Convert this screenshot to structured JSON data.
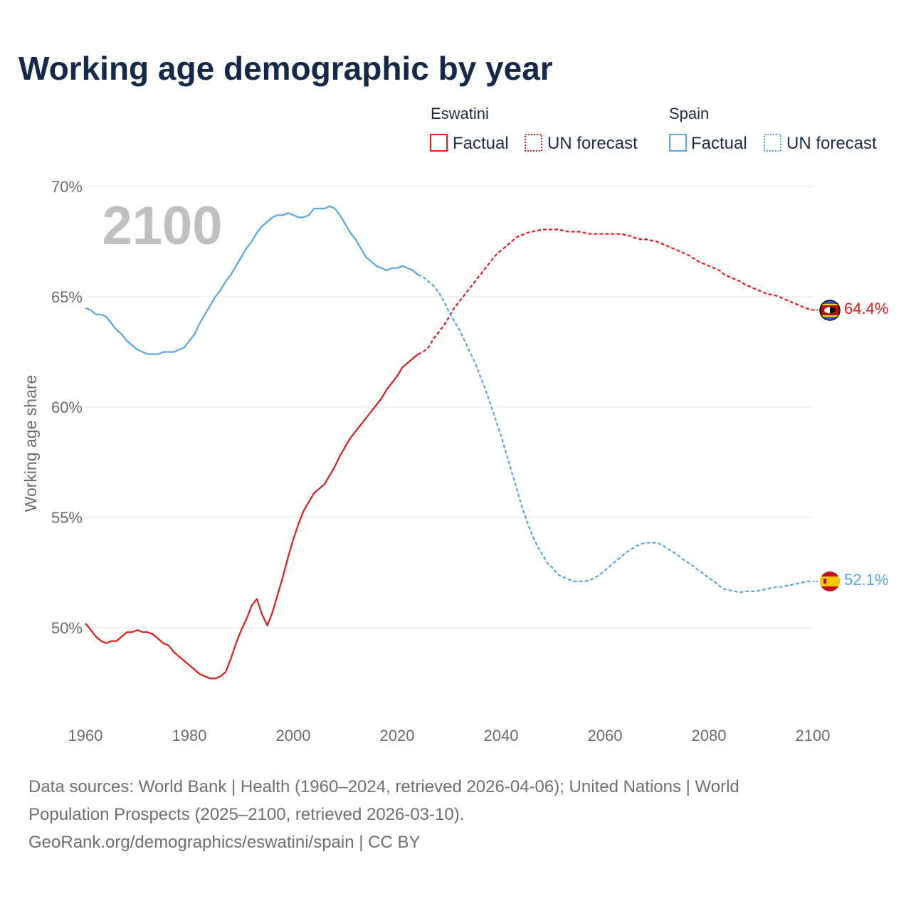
{
  "title": "Working age demographic by year",
  "year_watermark": "2100",
  "legend": {
    "groups": [
      {
        "name": "Eswatini",
        "color": "#e5191e",
        "factual_label": "Factual",
        "forecast_label": "UN forecast"
      },
      {
        "name": "Spain",
        "color": "#58a4e6",
        "factual_label": "Factual",
        "forecast_label": "UN forecast"
      }
    ]
  },
  "source": {
    "line1": "Data sources: World Bank | Health (1960–2024, retrieved 2026-04-06); United Nations | World",
    "line2": "Population Prospects (2025–2100, retrieved 2026-03-10).",
    "line3": "GeoRank.org/demographics/eswatini/spain | CC BY"
  },
  "chart_data": {
    "type": "line",
    "title": "Working age demographic by year",
    "xlabel": "",
    "ylabel": "Working age share",
    "xlim": [
      1960,
      2100
    ],
    "ylim": [
      46.0,
      70.0
    ],
    "x_ticks": [
      1960,
      1980,
      2000,
      2020,
      2040,
      2060,
      2080,
      2100
    ],
    "y_ticks": [
      50,
      55,
      60,
      65,
      70
    ],
    "y_tick_labels": [
      "50%",
      "55%",
      "60%",
      "65%",
      "70%"
    ],
    "series": [
      {
        "name": "Eswatini",
        "color": "#e5191e",
        "end_label": "64.4%",
        "factual": [
          [
            1960,
            50.2
          ],
          [
            1961,
            49.9
          ],
          [
            1962,
            49.6
          ],
          [
            1963,
            49.4
          ],
          [
            1964,
            49.3
          ],
          [
            1965,
            49.4
          ],
          [
            1966,
            49.4
          ],
          [
            1967,
            49.6
          ],
          [
            1968,
            49.8
          ],
          [
            1969,
            49.8
          ],
          [
            1970,
            49.9
          ],
          [
            1971,
            49.8
          ],
          [
            1972,
            49.8
          ],
          [
            1973,
            49.7
          ],
          [
            1974,
            49.5
          ],
          [
            1975,
            49.3
          ],
          [
            1976,
            49.2
          ],
          [
            1977,
            48.9
          ],
          [
            1978,
            48.7
          ],
          [
            1979,
            48.5
          ],
          [
            1980,
            48.3
          ],
          [
            1981,
            48.1
          ],
          [
            1982,
            47.9
          ],
          [
            1983,
            47.8
          ],
          [
            1984,
            47.7
          ],
          [
            1985,
            47.7
          ],
          [
            1986,
            47.8
          ],
          [
            1987,
            48.0
          ],
          [
            1988,
            48.6
          ],
          [
            1989,
            49.3
          ],
          [
            1990,
            49.9
          ],
          [
            1991,
            50.4
          ],
          [
            1992,
            51.0
          ],
          [
            1993,
            51.3
          ],
          [
            1994,
            50.6
          ],
          [
            1995,
            50.1
          ],
          [
            1996,
            50.7
          ],
          [
            1997,
            51.5
          ],
          [
            1998,
            52.3
          ],
          [
            1999,
            53.2
          ],
          [
            2000,
            54.0
          ],
          [
            2001,
            54.7
          ],
          [
            2002,
            55.3
          ],
          [
            2003,
            55.7
          ],
          [
            2004,
            56.1
          ],
          [
            2005,
            56.3
          ],
          [
            2006,
            56.5
          ],
          [
            2007,
            56.9
          ],
          [
            2008,
            57.3
          ],
          [
            2009,
            57.8
          ],
          [
            2010,
            58.2
          ],
          [
            2011,
            58.6
          ],
          [
            2012,
            58.9
          ],
          [
            2013,
            59.2
          ],
          [
            2014,
            59.5
          ],
          [
            2015,
            59.8
          ],
          [
            2016,
            60.1
          ],
          [
            2017,
            60.4
          ],
          [
            2018,
            60.8
          ],
          [
            2019,
            61.1
          ],
          [
            2020,
            61.4
          ],
          [
            2021,
            61.8
          ],
          [
            2022,
            62.0
          ],
          [
            2023,
            62.2
          ],
          [
            2024,
            62.4
          ]
        ],
        "forecast": [
          [
            2024,
            62.4
          ],
          [
            2025,
            62.5
          ],
          [
            2026,
            62.7
          ],
          [
            2027,
            63.1
          ],
          [
            2028,
            63.4
          ],
          [
            2029,
            63.7
          ],
          [
            2030,
            64.1
          ],
          [
            2031,
            64.5
          ],
          [
            2032,
            64.8
          ],
          [
            2033,
            65.1
          ],
          [
            2034,
            65.4
          ],
          [
            2035,
            65.7
          ],
          [
            2036,
            66.0
          ],
          [
            2037,
            66.3
          ],
          [
            2038,
            66.6
          ],
          [
            2039,
            66.9
          ],
          [
            2040,
            67.1
          ],
          [
            2041,
            67.3
          ],
          [
            2042,
            67.5
          ],
          [
            2043,
            67.7
          ],
          [
            2044,
            67.8
          ],
          [
            2045,
            67.9
          ],
          [
            2046,
            67.95
          ],
          [
            2047,
            68.0
          ],
          [
            2048,
            68.05
          ],
          [
            2049,
            68.05
          ],
          [
            2050,
            68.05
          ],
          [
            2051,
            68.05
          ],
          [
            2052,
            68.0
          ],
          [
            2053,
            67.95
          ],
          [
            2054,
            67.95
          ],
          [
            2055,
            67.95
          ],
          [
            2056,
            67.9
          ],
          [
            2057,
            67.85
          ],
          [
            2058,
            67.85
          ],
          [
            2059,
            67.85
          ],
          [
            2060,
            67.85
          ],
          [
            2061,
            67.85
          ],
          [
            2062,
            67.85
          ],
          [
            2063,
            67.85
          ],
          [
            2064,
            67.8
          ],
          [
            2065,
            67.75
          ],
          [
            2066,
            67.65
          ],
          [
            2067,
            67.6
          ],
          [
            2068,
            67.6
          ],
          [
            2069,
            67.55
          ],
          [
            2070,
            67.5
          ],
          [
            2071,
            67.4
          ],
          [
            2072,
            67.3
          ],
          [
            2073,
            67.2
          ],
          [
            2074,
            67.1
          ],
          [
            2075,
            67.0
          ],
          [
            2076,
            66.9
          ],
          [
            2077,
            66.75
          ],
          [
            2078,
            66.6
          ],
          [
            2079,
            66.5
          ],
          [
            2080,
            66.4
          ],
          [
            2081,
            66.3
          ],
          [
            2082,
            66.2
          ],
          [
            2083,
            66.0
          ],
          [
            2084,
            65.9
          ],
          [
            2085,
            65.8
          ],
          [
            2086,
            65.7
          ],
          [
            2087,
            65.55
          ],
          [
            2088,
            65.45
          ],
          [
            2089,
            65.35
          ],
          [
            2090,
            65.25
          ],
          [
            2091,
            65.15
          ],
          [
            2092,
            65.1
          ],
          [
            2093,
            65.05
          ],
          [
            2094,
            64.95
          ],
          [
            2095,
            64.85
          ],
          [
            2096,
            64.75
          ],
          [
            2097,
            64.65
          ],
          [
            2098,
            64.55
          ],
          [
            2099,
            64.45
          ],
          [
            2100,
            64.4
          ]
        ]
      },
      {
        "name": "Spain",
        "color": "#58a4e6",
        "end_label": "52.1%",
        "factual": [
          [
            1960,
            64.5
          ],
          [
            1961,
            64.4
          ],
          [
            1962,
            64.2
          ],
          [
            1963,
            64.2
          ],
          [
            1964,
            64.1
          ],
          [
            1965,
            63.8
          ],
          [
            1966,
            63.5
          ],
          [
            1967,
            63.3
          ],
          [
            1968,
            63.0
          ],
          [
            1969,
            62.8
          ],
          [
            1970,
            62.6
          ],
          [
            1971,
            62.5
          ],
          [
            1972,
            62.4
          ],
          [
            1973,
            62.4
          ],
          [
            1974,
            62.4
          ],
          [
            1975,
            62.5
          ],
          [
            1976,
            62.5
          ],
          [
            1977,
            62.5
          ],
          [
            1978,
            62.6
          ],
          [
            1979,
            62.7
          ],
          [
            1980,
            63.0
          ],
          [
            1981,
            63.3
          ],
          [
            1982,
            63.8
          ],
          [
            1983,
            64.2
          ],
          [
            1984,
            64.6
          ],
          [
            1985,
            65.0
          ],
          [
            1986,
            65.3
          ],
          [
            1987,
            65.7
          ],
          [
            1988,
            66.0
          ],
          [
            1989,
            66.4
          ],
          [
            1990,
            66.8
          ],
          [
            1991,
            67.2
          ],
          [
            1992,
            67.5
          ],
          [
            1993,
            67.9
          ],
          [
            1994,
            68.2
          ],
          [
            1995,
            68.4
          ],
          [
            1996,
            68.6
          ],
          [
            1997,
            68.7
          ],
          [
            1998,
            68.7
          ],
          [
            1999,
            68.8
          ],
          [
            2000,
            68.7
          ],
          [
            2001,
            68.6
          ],
          [
            2002,
            68.6
          ],
          [
            2003,
            68.7
          ],
          [
            2004,
            69.0
          ],
          [
            2005,
            69.0
          ],
          [
            2006,
            69.0
          ],
          [
            2007,
            69.1
          ],
          [
            2008,
            69.0
          ],
          [
            2009,
            68.7
          ],
          [
            2010,
            68.3
          ],
          [
            2011,
            67.9
          ],
          [
            2012,
            67.6
          ],
          [
            2013,
            67.2
          ],
          [
            2014,
            66.8
          ],
          [
            2015,
            66.6
          ],
          [
            2016,
            66.4
          ],
          [
            2017,
            66.3
          ],
          [
            2018,
            66.2
          ],
          [
            2019,
            66.3
          ],
          [
            2020,
            66.3
          ],
          [
            2021,
            66.4
          ],
          [
            2022,
            66.3
          ],
          [
            2023,
            66.2
          ],
          [
            2024,
            66.0
          ]
        ],
        "forecast": [
          [
            2024,
            66.0
          ],
          [
            2025,
            65.9
          ],
          [
            2026,
            65.7
          ],
          [
            2027,
            65.5
          ],
          [
            2028,
            65.2
          ],
          [
            2029,
            64.8
          ],
          [
            2030,
            64.3
          ],
          [
            2031,
            63.9
          ],
          [
            2032,
            63.5
          ],
          [
            2033,
            63.0
          ],
          [
            2034,
            62.5
          ],
          [
            2035,
            62.0
          ],
          [
            2036,
            61.4
          ],
          [
            2037,
            60.8
          ],
          [
            2038,
            60.1
          ],
          [
            2039,
            59.4
          ],
          [
            2040,
            58.7
          ],
          [
            2041,
            57.9
          ],
          [
            2042,
            57.1
          ],
          [
            2043,
            56.3
          ],
          [
            2044,
            55.5
          ],
          [
            2045,
            54.8
          ],
          [
            2046,
            54.2
          ],
          [
            2047,
            53.7
          ],
          [
            2048,
            53.3
          ],
          [
            2049,
            52.9
          ],
          [
            2050,
            52.7
          ],
          [
            2051,
            52.4
          ],
          [
            2052,
            52.3
          ],
          [
            2053,
            52.2
          ],
          [
            2054,
            52.1
          ],
          [
            2055,
            52.1
          ],
          [
            2056,
            52.1
          ],
          [
            2057,
            52.15
          ],
          [
            2058,
            52.25
          ],
          [
            2059,
            52.4
          ],
          [
            2060,
            52.6
          ],
          [
            2061,
            52.8
          ],
          [
            2062,
            53.0
          ],
          [
            2063,
            53.2
          ],
          [
            2064,
            53.4
          ],
          [
            2065,
            53.55
          ],
          [
            2066,
            53.7
          ],
          [
            2067,
            53.8
          ],
          [
            2068,
            53.85
          ],
          [
            2069,
            53.85
          ],
          [
            2070,
            53.85
          ],
          [
            2071,
            53.75
          ],
          [
            2072,
            53.6
          ],
          [
            2073,
            53.45
          ],
          [
            2074,
            53.3
          ],
          [
            2075,
            53.1
          ],
          [
            2076,
            52.95
          ],
          [
            2077,
            52.8
          ],
          [
            2078,
            52.6
          ],
          [
            2079,
            52.45
          ],
          [
            2080,
            52.25
          ],
          [
            2081,
            52.1
          ],
          [
            2082,
            51.9
          ],
          [
            2083,
            51.75
          ],
          [
            2084,
            51.7
          ],
          [
            2085,
            51.65
          ],
          [
            2086,
            51.6
          ],
          [
            2087,
            51.65
          ],
          [
            2088,
            51.65
          ],
          [
            2089,
            51.65
          ],
          [
            2090,
            51.7
          ],
          [
            2091,
            51.75
          ],
          [
            2092,
            51.8
          ],
          [
            2093,
            51.85
          ],
          [
            2094,
            51.85
          ],
          [
            2095,
            51.9
          ],
          [
            2096,
            51.95
          ],
          [
            2097,
            52.0
          ],
          [
            2098,
            52.05
          ],
          [
            2099,
            52.1
          ],
          [
            2100,
            52.1
          ]
        ]
      }
    ]
  }
}
